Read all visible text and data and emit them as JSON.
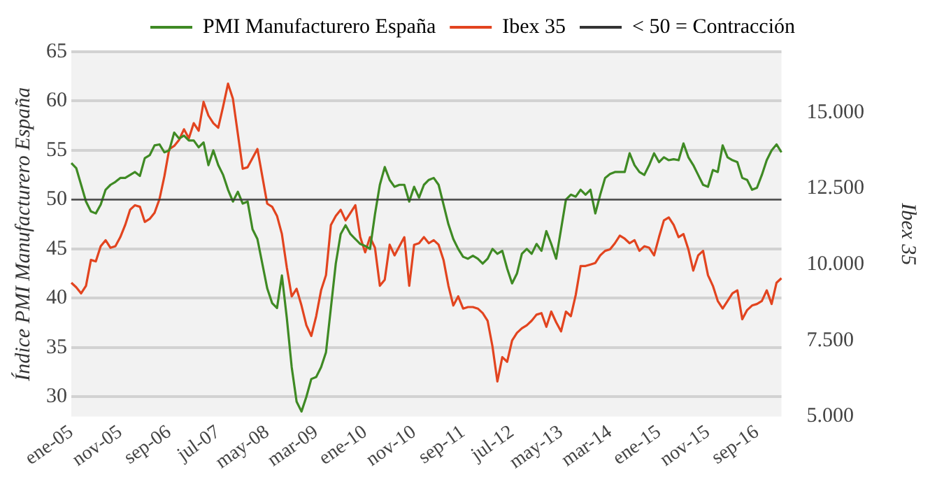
{
  "chart_data": {
    "type": "line",
    "xlabel": null,
    "ylabel": "Índice PMI Manufacturero España",
    "y2label": "Ibex 35",
    "categories": [
      "ene-05",
      null,
      null,
      null,
      null,
      null,
      null,
      null,
      null,
      null,
      "nov-05",
      null,
      null,
      null,
      null,
      null,
      null,
      null,
      null,
      null,
      "sep-06",
      null,
      null,
      null,
      null,
      null,
      null,
      null,
      null,
      null,
      "jul-07",
      null,
      null,
      null,
      null,
      null,
      null,
      null,
      null,
      null,
      "may-08",
      null,
      null,
      null,
      null,
      null,
      null,
      null,
      null,
      null,
      "mar-09",
      null,
      null,
      null,
      null,
      null,
      null,
      null,
      null,
      null,
      "ene-10",
      null,
      null,
      null,
      null,
      null,
      null,
      null,
      null,
      null,
      "nov-10",
      null,
      null,
      null,
      null,
      null,
      null,
      null,
      null,
      null,
      "sep-11",
      null,
      null,
      null,
      null,
      null,
      null,
      null,
      null,
      null,
      "jul-12",
      null,
      null,
      null,
      null,
      null,
      null,
      null,
      null,
      null,
      "may-13",
      null,
      null,
      null,
      null,
      null,
      null,
      null,
      null,
      null,
      "mar-14",
      null,
      null,
      null,
      null,
      null,
      null,
      null,
      null,
      null,
      "ene-15",
      null,
      null,
      null,
      null,
      null,
      null,
      null,
      null,
      null,
      "nov-15",
      null,
      null,
      null,
      null,
      null,
      null,
      null,
      null,
      null,
      "sep-16",
      null,
      null,
      null,
      null,
      null
    ],
    "series": [
      {
        "name": "PMI Manufacturero España",
        "color": "#3f8a24",
        "values": [
          53.7,
          53.2,
          51.5,
          49.8,
          48.8,
          48.6,
          49.5,
          51.0,
          51.5,
          51.8,
          52.2,
          52.2,
          52.5,
          52.8,
          52.4,
          54.2,
          54.5,
          55.5,
          55.6,
          54.8,
          55.0,
          56.8,
          56.2,
          56.5,
          56.0,
          56.0,
          55.3,
          55.8,
          53.5,
          55.0,
          53.5,
          52.5,
          51.0,
          49.8,
          50.8,
          49.6,
          49.8,
          47.0,
          46.0,
          43.5,
          41.0,
          39.5,
          39.0,
          42.3,
          38.0,
          33.0,
          29.5,
          28.5,
          30.0,
          31.8,
          32.0,
          33.0,
          34.5,
          39.0,
          43.5,
          46.5,
          47.4,
          46.5,
          46.0,
          45.5,
          45.3,
          45.0,
          48.5,
          51.5,
          53.3,
          52.0,
          51.3,
          51.5,
          51.5,
          49.8,
          51.3,
          50.2,
          51.5,
          52.0,
          52.2,
          51.5,
          49.5,
          47.5,
          46.0,
          45.0,
          44.2,
          44.0,
          44.3,
          44.0,
          43.5,
          44.0,
          45.0,
          44.5,
          44.8,
          43.0,
          41.5,
          42.5,
          44.5,
          45.0,
          44.5,
          45.5,
          44.8,
          46.8,
          45.5,
          44.0,
          47.0,
          50.0,
          50.5,
          50.3,
          51.0,
          50.5,
          51.0,
          48.6,
          50.5,
          52.2,
          52.6,
          52.8,
          52.8,
          52.8,
          54.7,
          53.5,
          52.8,
          52.5,
          53.5,
          54.7,
          53.8,
          54.3,
          54.0,
          54.1,
          54.0,
          55.7,
          54.3,
          53.5,
          52.5,
          51.5,
          51.3,
          53.0,
          52.8,
          55.5,
          54.3,
          54.0,
          53.8,
          52.2,
          52.0,
          51.0,
          51.2,
          52.5,
          54.0,
          55.0,
          55.6,
          54.8
        ]
      },
      {
        "name": "Ibex 35",
        "color": "#e2441f",
        "axis": "y2",
        "values": [
          9400,
          9250,
          9050,
          9300,
          10150,
          10100,
          10600,
          10800,
          10550,
          10600,
          10900,
          11300,
          11800,
          11950,
          11900,
          11400,
          11500,
          11700,
          12150,
          12900,
          13800,
          13900,
          14100,
          14450,
          14150,
          14650,
          14400,
          15350,
          14900,
          14650,
          14500,
          15200,
          15950,
          15450,
          14300,
          13150,
          13200,
          13500,
          13800,
          12900,
          12000,
          11900,
          11600,
          11000,
          9900,
          8950,
          9200,
          8650,
          8000,
          7650,
          8300,
          9150,
          9650,
          11300,
          11600,
          11800,
          11450,
          11700,
          11950,
          10900,
          10400,
          10900,
          10550,
          9300,
          9500,
          10650,
          10300,
          10600,
          10900,
          9300,
          10650,
          10700,
          10900,
          10700,
          10800,
          10650,
          10150,
          9300,
          8650,
          8950,
          8550,
          8600,
          8600,
          8550,
          8400,
          8150,
          7300,
          6150,
          6950,
          6800,
          7500,
          7750,
          7900,
          8000,
          8150,
          8350,
          8400,
          7950,
          8450,
          8100,
          7800,
          8450,
          8300,
          9000,
          9950,
          9950,
          10000,
          10050,
          10300,
          10450,
          10500,
          10700,
          10950,
          10850,
          10700,
          10800,
          10450,
          10600,
          10550,
          10300,
          10900,
          11450,
          11550,
          11300,
          10900,
          11000,
          10500,
          9800,
          10300,
          10450,
          9650,
          9300,
          8800,
          8550,
          8800,
          9050,
          9150,
          8200,
          8500,
          8650,
          8700,
          8800,
          9150,
          8700,
          9400,
          9550
        ]
      }
    ],
    "ylim": [
      28,
      65
    ],
    "yticks": [
      30,
      35,
      40,
      45,
      50,
      55,
      60,
      65
    ],
    "y2lim": [
      5000,
      17000
    ],
    "y2ticks": [
      {
        "value": 5000,
        "label": "5.000"
      },
      {
        "value": 7500,
        "label": "7.500"
      },
      {
        "value": 10000,
        "label": "10.000"
      },
      {
        "value": 12500,
        "label": "12.500"
      },
      {
        "value": 15000,
        "label": "15.000"
      }
    ],
    "ref_lines": [
      {
        "axis": "y",
        "value": 50,
        "label": "< 50 = Contracción",
        "color": "#333333"
      }
    ],
    "grid": "y",
    "legend": "top",
    "marker": "none",
    "line_style": "solid"
  }
}
